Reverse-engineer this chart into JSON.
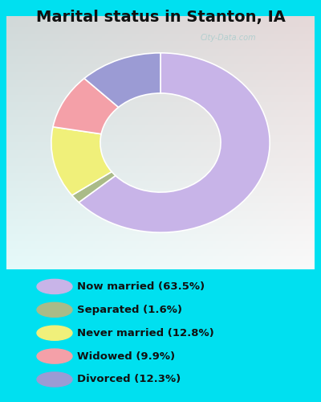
{
  "title": "Marital status in Stanton, IA",
  "slices": [
    63.5,
    1.6,
    12.8,
    9.9,
    12.3
  ],
  "labels": [
    "Now married (63.5%)",
    "Separated (1.6%)",
    "Never married (12.8%)",
    "Widowed (9.9%)",
    "Divorced (12.3%)"
  ],
  "colors": [
    "#c8b4e8",
    "#aabb88",
    "#f0f07a",
    "#f4a0a8",
    "#9b9bd4"
  ],
  "bg_cyan": "#00e0f0",
  "bg_chart_color": "#d4ede0",
  "title_fontsize": 14,
  "watermark": "City-Data.com",
  "figsize": [
    4.0,
    5.0
  ],
  "dpi": 100,
  "donut_outer_r": 0.78,
  "donut_width": 0.35
}
